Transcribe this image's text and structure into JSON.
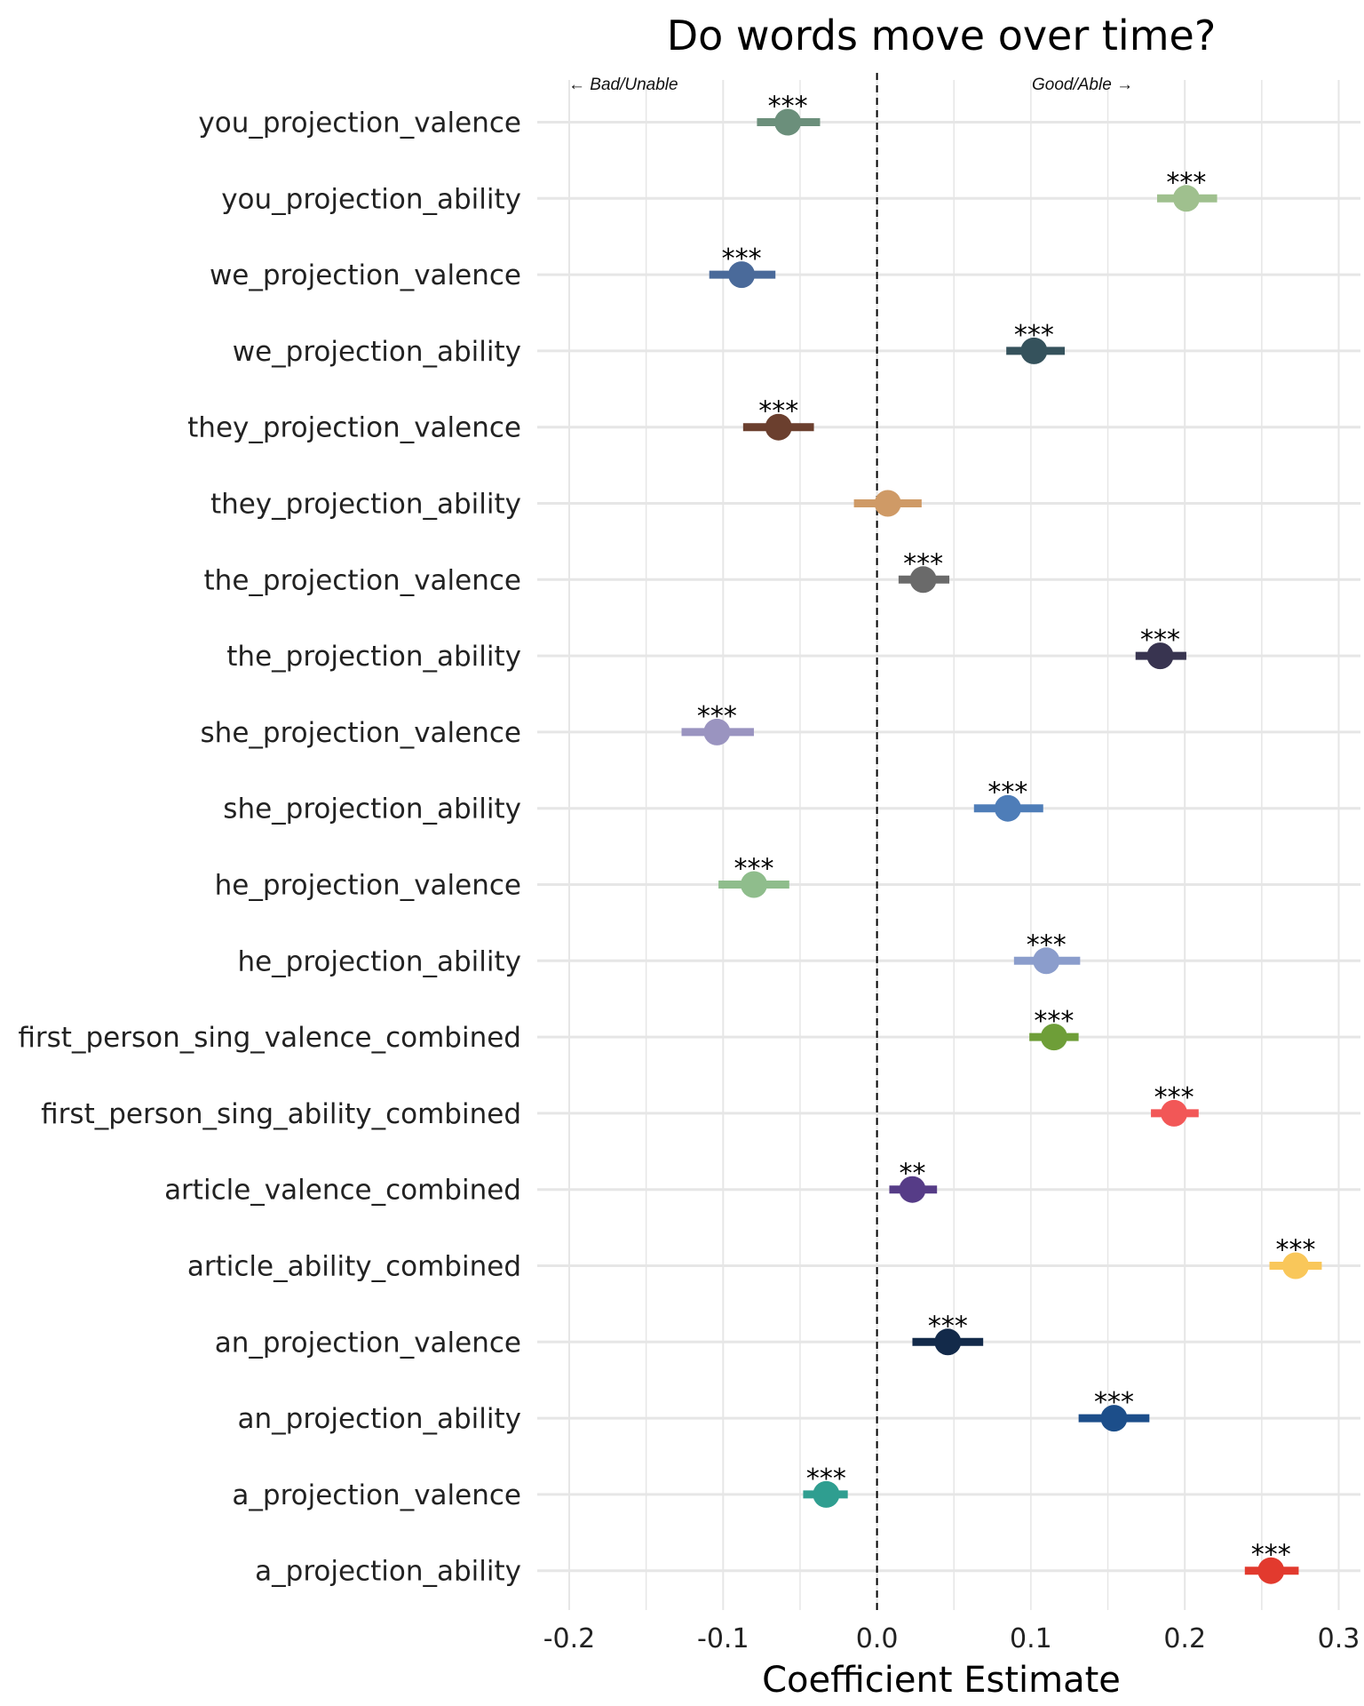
{
  "chart_data": {
    "type": "scatter",
    "subtype": "coefficient-plot",
    "title": "Do words move over time?",
    "xlabel": "Coefficient Estimate",
    "ylabel": "",
    "xlim": [
      -0.22,
      0.31
    ],
    "xticks": [
      -0.2,
      -0.1,
      0.0,
      0.1,
      0.2,
      0.3
    ],
    "xtick_labels": [
      "-0.2",
      "-0.1",
      "0.0",
      "0.1",
      "0.2",
      "0.3"
    ],
    "grid": true,
    "reference_line": {
      "x": 0.0,
      "style": "dashed"
    },
    "annotations": {
      "left": "← Bad/Unable",
      "right": "Good/Able →"
    },
    "series": [
      {
        "name": "you_projection_valence",
        "estimate": -0.058,
        "ci_low": -0.078,
        "ci_high": -0.037,
        "sig": "***",
        "color": "#6b8f7b"
      },
      {
        "name": "you_projection_ability",
        "estimate": 0.201,
        "ci_low": 0.182,
        "ci_high": 0.221,
        "sig": "***",
        "color": "#9fc08e"
      },
      {
        "name": "we_projection_valence",
        "estimate": -0.088,
        "ci_low": -0.109,
        "ci_high": -0.066,
        "sig": "***",
        "color": "#4a6a9a"
      },
      {
        "name": "we_projection_ability",
        "estimate": 0.102,
        "ci_low": 0.084,
        "ci_high": 0.122,
        "sig": "***",
        "color": "#35525c"
      },
      {
        "name": "they_projection_valence",
        "estimate": -0.064,
        "ci_low": -0.087,
        "ci_high": -0.041,
        "sig": "***",
        "color": "#6b3f2e"
      },
      {
        "name": "they_projection_ability",
        "estimate": 0.007,
        "ci_low": -0.015,
        "ci_high": 0.029,
        "sig": "",
        "color": "#cf9a66"
      },
      {
        "name": "the_projection_valence",
        "estimate": 0.03,
        "ci_low": 0.014,
        "ci_high": 0.047,
        "sig": "***",
        "color": "#6a6a6a"
      },
      {
        "name": "the_projection_ability",
        "estimate": 0.184,
        "ci_low": 0.168,
        "ci_high": 0.201,
        "sig": "***",
        "color": "#383450"
      },
      {
        "name": "she_projection_valence",
        "estimate": -0.104,
        "ci_low": -0.127,
        "ci_high": -0.08,
        "sig": "***",
        "color": "#9a94c0"
      },
      {
        "name": "she_projection_ability",
        "estimate": 0.085,
        "ci_low": 0.063,
        "ci_high": 0.108,
        "sig": "***",
        "color": "#4e7db8"
      },
      {
        "name": "he_projection_valence",
        "estimate": -0.08,
        "ci_low": -0.103,
        "ci_high": -0.057,
        "sig": "***",
        "color": "#8fbd8c"
      },
      {
        "name": "he_projection_ability",
        "estimate": 0.11,
        "ci_low": 0.089,
        "ci_high": 0.132,
        "sig": "***",
        "color": "#8b9dcc"
      },
      {
        "name": "first_person_sing_valence_combined",
        "estimate": 0.115,
        "ci_low": 0.099,
        "ci_high": 0.131,
        "sig": "***",
        "color": "#6e9e38"
      },
      {
        "name": "first_person_sing_ability_combined",
        "estimate": 0.193,
        "ci_low": 0.178,
        "ci_high": 0.209,
        "sig": "***",
        "color": "#f25757"
      },
      {
        "name": "article_valence_combined",
        "estimate": 0.023,
        "ci_low": 0.008,
        "ci_high": 0.039,
        "sig": "**",
        "color": "#563c87"
      },
      {
        "name": "article_ability_combined",
        "estimate": 0.272,
        "ci_low": 0.255,
        "ci_high": 0.289,
        "sig": "***",
        "color": "#f9c75a"
      },
      {
        "name": "an_projection_valence",
        "estimate": 0.046,
        "ci_low": 0.023,
        "ci_high": 0.069,
        "sig": "***",
        "color": "#132a4a"
      },
      {
        "name": "an_projection_ability",
        "estimate": 0.154,
        "ci_low": 0.131,
        "ci_high": 0.177,
        "sig": "***",
        "color": "#1c4e8a"
      },
      {
        "name": "a_projection_valence",
        "estimate": -0.033,
        "ci_low": -0.048,
        "ci_high": -0.019,
        "sig": "***",
        "color": "#2f9e90"
      },
      {
        "name": "a_projection_ability",
        "estimate": 0.256,
        "ci_low": 0.239,
        "ci_high": 0.274,
        "sig": "***",
        "color": "#e23a2e"
      }
    ]
  }
}
